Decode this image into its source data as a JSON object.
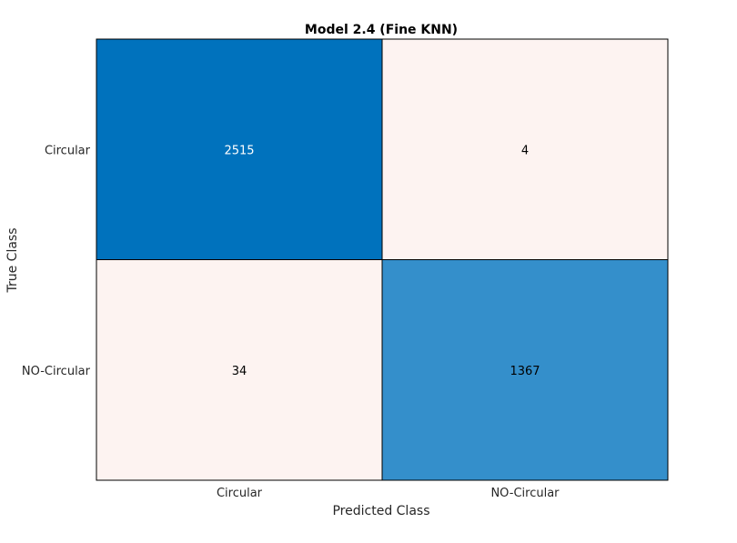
{
  "chart_data": {
    "type": "heatmap",
    "title": "Model 2.4 (Fine KNN)",
    "xlabel": "Predicted Class",
    "ylabel": "True Class",
    "x_categories": [
      "Circular",
      "NO-Circular"
    ],
    "y_categories": [
      "Circular",
      "NO-Circular"
    ],
    "values": [
      [
        2515,
        4
      ],
      [
        34,
        1367
      ]
    ],
    "colors": {
      "high": "#0072bd",
      "low": "#fdf3f1",
      "grid": "#000000",
      "text_dark": "#000000",
      "text_light": "#ffffff"
    }
  }
}
